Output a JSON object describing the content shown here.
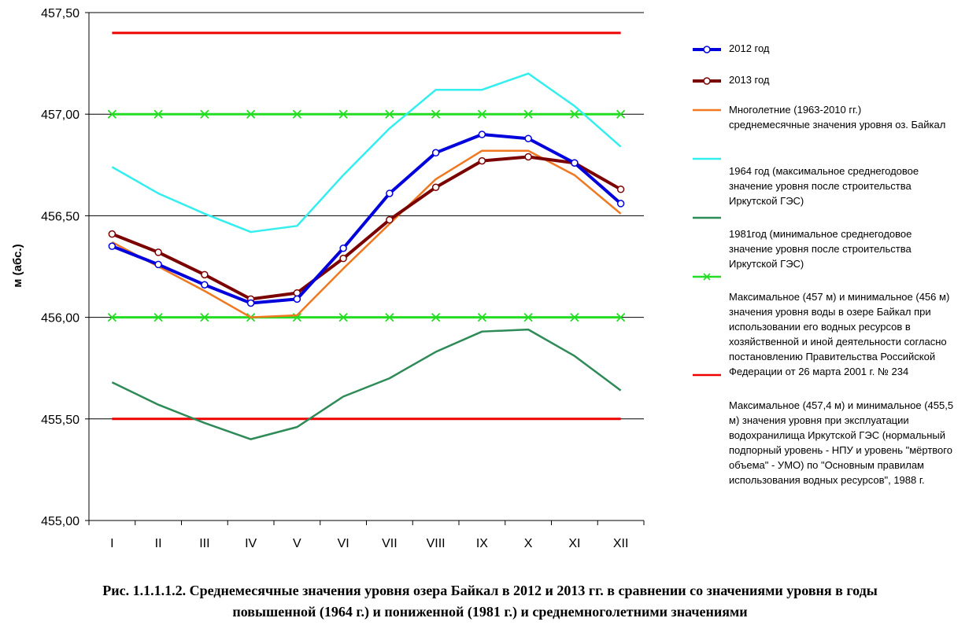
{
  "chart_data": {
    "type": "line",
    "ylabel": "м (абс.)",
    "xlabel": "",
    "ylim": [
      455.0,
      457.5
    ],
    "yticks": [
      "455,00",
      "455,50",
      "456,00",
      "456,50",
      "457,00",
      "457,50"
    ],
    "categories": [
      "I",
      "II",
      "III",
      "IV",
      "V",
      "VI",
      "VII",
      "VIII",
      "IX",
      "X",
      "XI",
      "XII"
    ],
    "series": [
      {
        "name": "2012 год",
        "color": "#0000dd",
        "marker": "circle",
        "values": [
          456.35,
          456.26,
          456.16,
          456.07,
          456.09,
          456.34,
          456.61,
          456.81,
          456.9,
          456.88,
          456.76,
          456.56
        ]
      },
      {
        "name": "2013 год",
        "color": "#7b0000",
        "marker": "circle",
        "values": [
          456.41,
          456.32,
          456.21,
          456.09,
          456.12,
          456.29,
          456.48,
          456.64,
          456.77,
          456.79,
          456.76,
          456.63
        ]
      },
      {
        "name": "Многолетние (1963-2010 гг.) среднемесячные значения уровня оз. Байкал",
        "color": "#f07820",
        "marker": "none",
        "values": [
          456.37,
          456.25,
          456.13,
          456.0,
          456.01,
          456.24,
          456.46,
          456.68,
          456.82,
          456.82,
          456.7,
          456.51
        ]
      },
      {
        "name": "1964 год (максимальное среднегодовое значение уровня после строительства Иркутской ГЭС)",
        "color": "#33eeee",
        "marker": "none",
        "values": [
          456.74,
          456.61,
          456.51,
          456.42,
          456.45,
          456.7,
          456.93,
          457.12,
          457.12,
          457.2,
          457.04,
          456.84
        ]
      },
      {
        "name": "1981год (минимальное среднегодовое значение уровня после строительства Иркутской ГЭС)",
        "color": "#2e8b57",
        "marker": "none",
        "values": [
          455.68,
          455.57,
          455.48,
          455.4,
          455.46,
          455.61,
          455.7,
          455.83,
          455.93,
          455.94,
          455.81,
          455.64
        ]
      },
      {
        "name": "Максимальное (457 м) и минимальное (456 м) значения уровня воды в озере Байкал при использовании его водных ресурсов в хозяйственной и иной деятельности согласно постановлению Правительства Российской Федерации от 26 марта 2001 г. № 234",
        "color": "#22dd22",
        "marker": "x",
        "lines": [
          457.0,
          456.0
        ]
      },
      {
        "name": "Максимальное (457,4 м) и минимальное (455,5 м) значения  уровня при эксплуатации водохранилища Иркутской ГЭС (нормальный подпорный уровень - НПУ и уровень \"мёртвого объема\" - УМО) по \"Основным правилам использования водных ресурсов\", 1988 г.",
        "color": "#ee0000",
        "marker": "none",
        "lines": [
          457.4,
          455.5
        ]
      }
    ]
  },
  "legend": {
    "s2012": "2012 год",
    "s2013": "2013 год",
    "mnogolet_1": "Многолетние (1963-2010 гг.)",
    "mnogolet_2": "среднемесячные значения уровня оз. Байкал",
    "y1964_1": "1964 год (максимальное среднегодовое",
    "y1964_2": "значение уровня после строительства",
    "y1964_3": "Иркутской ГЭС)",
    "y1981_1": "1981год (минимальное среднегодовое",
    "y1981_2": "значение уровня после строительства",
    "y1981_3": "Иркутской ГЭС)",
    "green_1": "Максимальное (457 м) и минимальное (456 м)",
    "green_2": "значения уровня воды в озере Байкал при",
    "green_3": "использовании его водных ресурсов в",
    "green_4": "хозяйственной и иной деятельности согласно",
    "green_5": "постановлению Правительства Российской",
    "green_6": "Федерации от 26 марта 2001 г. № 234",
    "red_1": "Максимальное (457,4 м) и минимальное (455,5",
    "red_2": "м) значения  уровня при эксплуатации",
    "red_3": "водохранилища Иркутской ГЭС (нормальный",
    "red_4": "подпорный уровень - НПУ и уровень \"мёртвого",
    "red_5": "объема\" - УМО) по \"Основным правилам",
    "red_6": "использования водных ресурсов\", 1988 г."
  },
  "caption": {
    "line1": "Рис. 1.1.1.1.2. Среднемесячные значения уровня озера Байкал в 2012 и 2013 гг. в сравнении со значениями уровня в годы",
    "line2": "повышенной (1964 г.) и  пониженной (1981 г.) и среднемноголетними значениями"
  }
}
